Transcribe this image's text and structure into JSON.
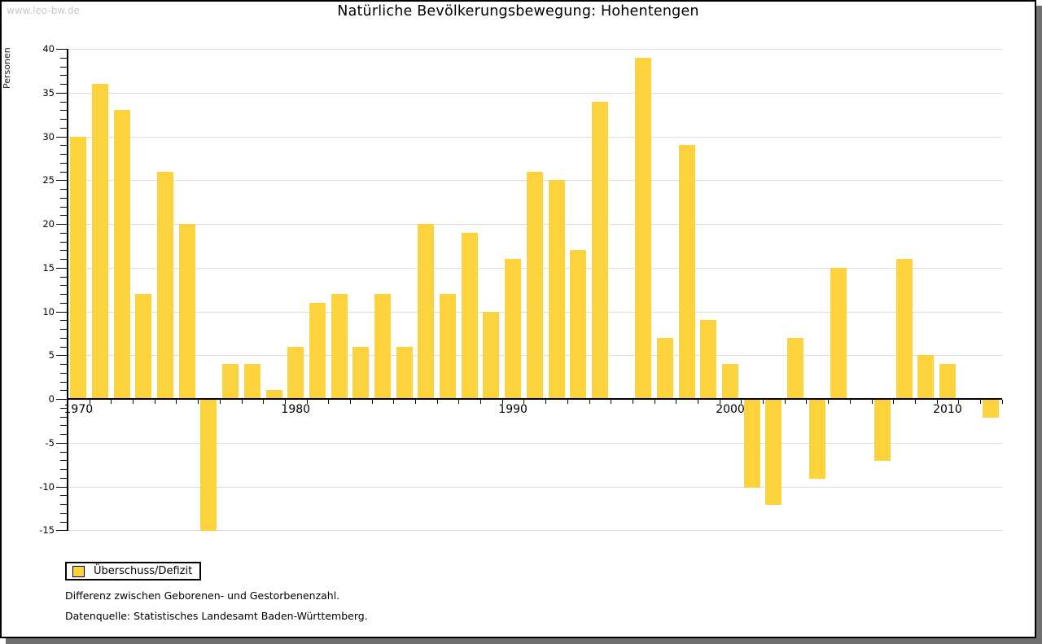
{
  "watermark": "www.leo-bw.de",
  "header": {
    "title": "Natürliche Bevölkerungsbewegung: Hohentengen"
  },
  "legend": {
    "label": "Überschuss/Defizit"
  },
  "footnotes": [
    "Differenz zwischen Geborenen- und Gestorbenenzahl.",
    "Datenquelle: Statistisches Landesamt Baden-Württemberg."
  ],
  "colors": {
    "bar": "#FCD33C",
    "grid": "#DDDDDD",
    "axis": "#000000",
    "watermark": "#C9C9C9",
    "frame_shadow": "#6F6F6F"
  },
  "chart_data": {
    "type": "bar",
    "title": "Natürliche Bevölkerungsbewegung: Hohentengen",
    "ylabel": "Personen",
    "xlabel": "",
    "series_name": "Überschuss/Defizit",
    "x": [
      1970,
      1971,
      1972,
      1973,
      1974,
      1975,
      1976,
      1977,
      1978,
      1979,
      1980,
      1981,
      1982,
      1983,
      1984,
      1985,
      1986,
      1987,
      1988,
      1989,
      1990,
      1991,
      1992,
      1993,
      1994,
      1995,
      1996,
      1997,
      1998,
      1999,
      2000,
      2001,
      2002,
      2003,
      2004,
      2005,
      2006,
      2007,
      2008,
      2009,
      2010,
      2011,
      2012
    ],
    "values": [
      30,
      36,
      33,
      12,
      26,
      20,
      -15,
      4,
      4,
      1,
      6,
      11,
      12,
      6,
      12,
      6,
      20,
      12,
      19,
      10,
      16,
      26,
      25,
      17,
      34,
      0,
      39,
      7,
      29,
      9,
      4,
      -10,
      -12,
      7,
      -9,
      15,
      0,
      -7,
      16,
      5,
      4,
      0,
      -2
    ],
    "ylim": [
      -15,
      40
    ],
    "y_major_step": 5,
    "y_minor_step": 1,
    "x_axis_labeled_years": [
      1970,
      1980,
      1990,
      2000,
      2010
    ],
    "grid": true,
    "legend_position": "bottom-left"
  }
}
